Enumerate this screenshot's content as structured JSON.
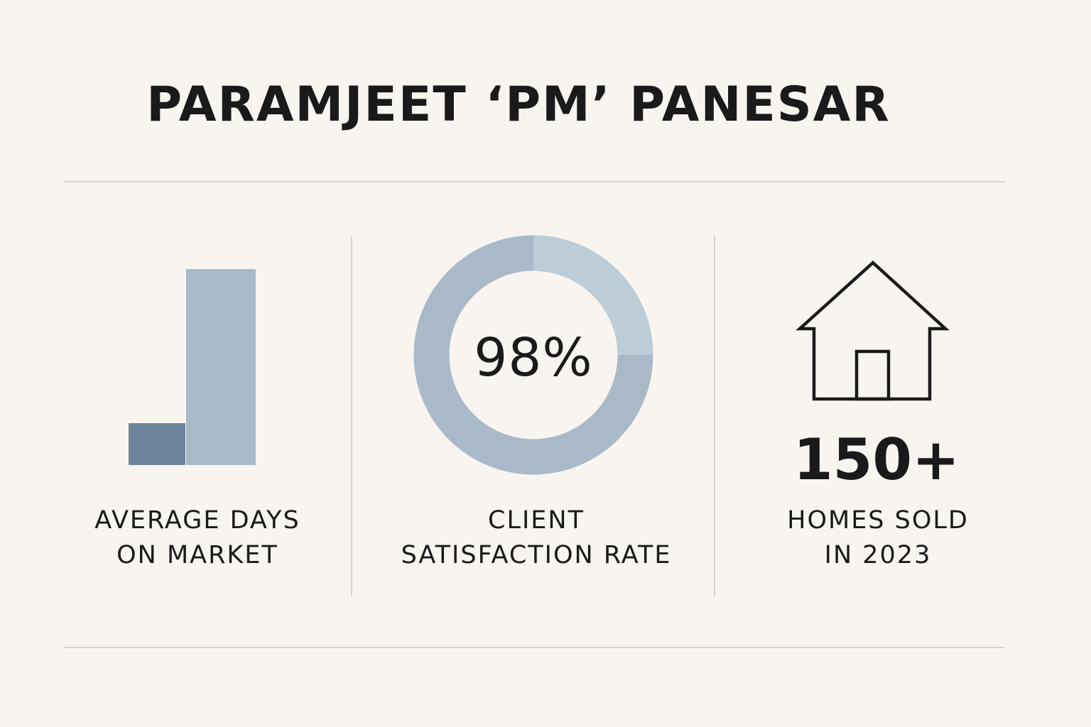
{
  "title": "PARAMJEET ‘PM’ PANESAR",
  "colors": {
    "background": "#f8f5f0",
    "bar_dark": "#6f859b",
    "bar_light": "#a8b9c8",
    "ring_light": "#bccdd8",
    "ring_main": "#a9b9c7",
    "divider": "#d7d2cb",
    "text": "#1a1a1a"
  },
  "stats": [
    {
      "icon": "bar-chart-icon",
      "label_lines": [
        "AVERAGE DAYS",
        "ON MARKET"
      ]
    },
    {
      "icon": "donut-chart-icon",
      "value": "98%",
      "label_lines": [
        "CLIENT",
        "SATISFACTION RATE"
      ]
    },
    {
      "icon": "house-icon",
      "value": "150+",
      "label_lines": [
        "HOMES SOLD",
        "IN 2023"
      ]
    }
  ]
}
